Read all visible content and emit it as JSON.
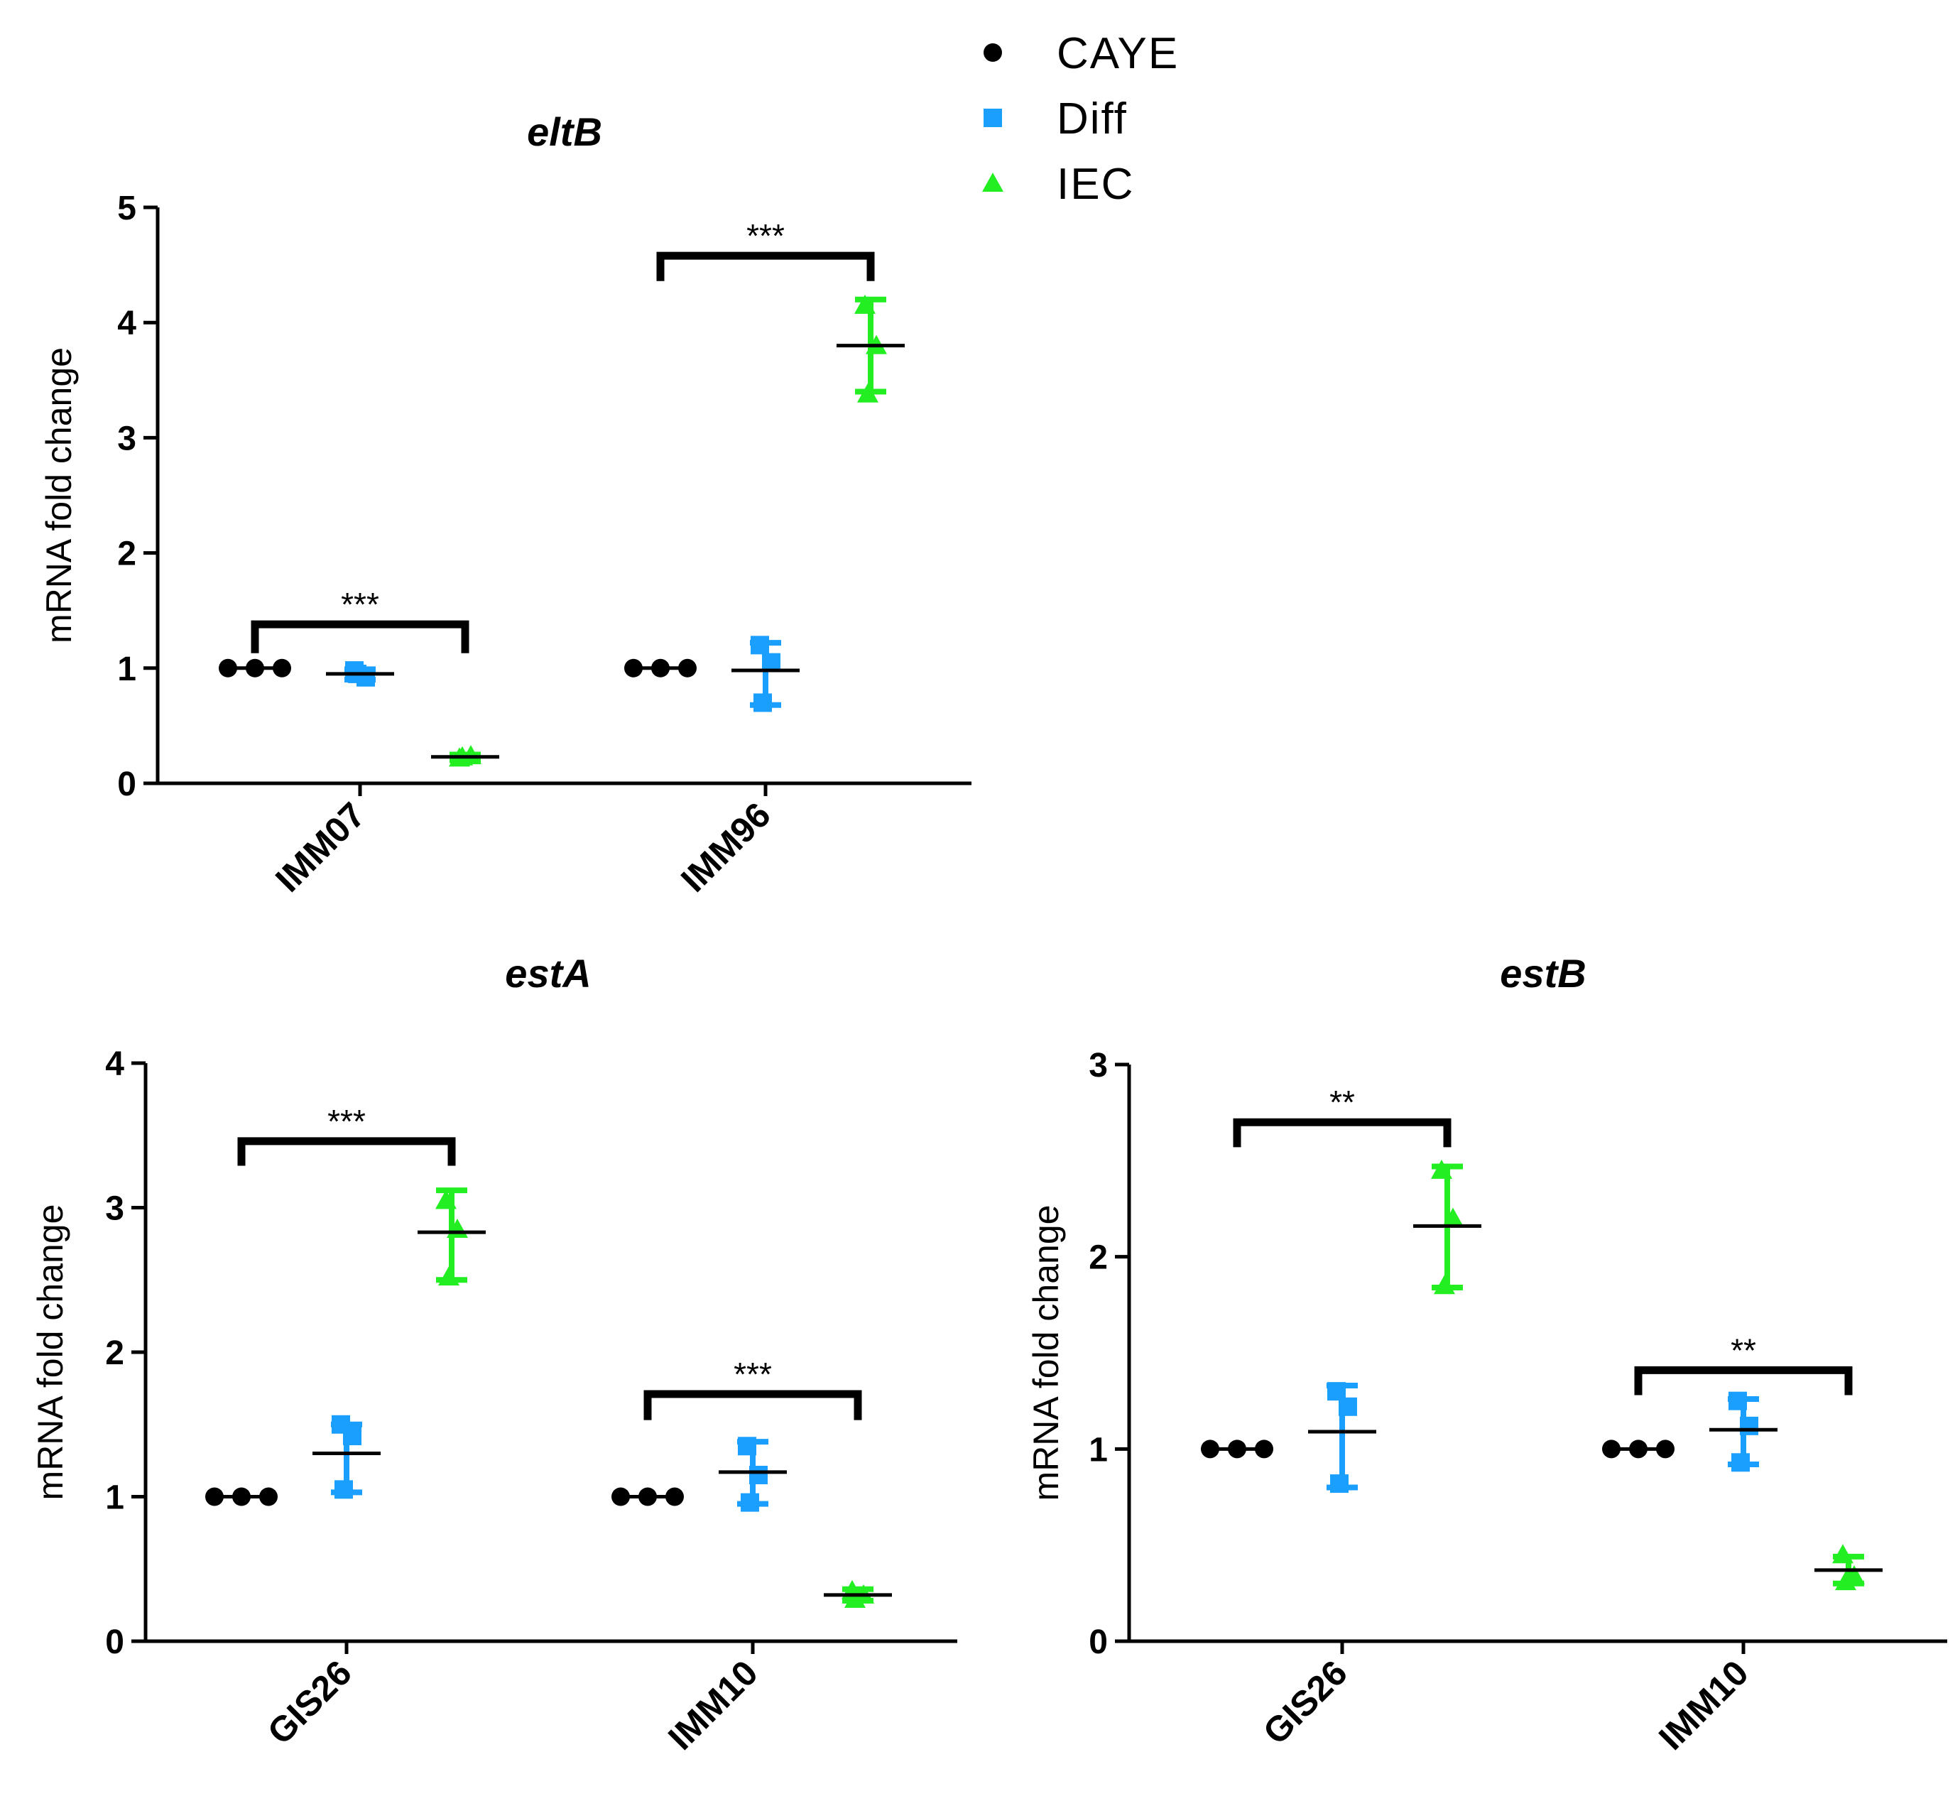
{
  "colors": {
    "CAYE": "#000000",
    "Diff": "#1a9fff",
    "IEC": "#22ee22",
    "axis": "#000000"
  },
  "legend": [
    {
      "name": "CAYE",
      "marker": "circle"
    },
    {
      "name": "Diff",
      "marker": "square"
    },
    {
      "name": "IEC",
      "marker": "triangle"
    }
  ],
  "chart_data": [
    {
      "type": "scatter",
      "title": "eltB",
      "ylabel": "mRNA fold change",
      "ylim": [
        0,
        5
      ],
      "yticks": [
        0,
        1,
        2,
        3,
        4,
        5
      ],
      "categories": [
        "IMM07",
        "IMM96"
      ],
      "series": [
        {
          "name": "CAYE",
          "groups": [
            {
              "points": [
                1.0,
                1.0,
                1.0
              ],
              "mean": 1.0,
              "err": [
                1.0,
                1.0
              ]
            },
            {
              "points": [
                1.0,
                1.0,
                1.0
              ],
              "mean": 1.0,
              "err": [
                1.0,
                1.0
              ]
            }
          ]
        },
        {
          "name": "Diff",
          "groups": [
            {
              "points": [
                0.98,
                0.92,
                0.95
              ],
              "mean": 0.95,
              "err": [
                0.9,
                0.99
              ]
            },
            {
              "points": [
                1.2,
                1.05,
                0.7
              ],
              "mean": 0.98,
              "err": [
                0.68,
                1.22
              ]
            }
          ]
        },
        {
          "name": "IEC",
          "groups": [
            {
              "points": [
                0.22,
                0.24,
                0.23
              ],
              "mean": 0.23,
              "err": [
                0.2,
                0.25
              ]
            },
            {
              "points": [
                4.15,
                3.8,
                3.38
              ],
              "mean": 3.8,
              "err": [
                3.4,
                4.2
              ]
            }
          ]
        }
      ],
      "significance": [
        {
          "group": 0,
          "from": "CAYE",
          "to": "IEC",
          "label": "***",
          "y": 1.38,
          "drop": 0.25
        },
        {
          "group": 1,
          "from": "CAYE",
          "to": "IEC",
          "label": "***",
          "y": 4.58,
          "drop": 0.22
        }
      ]
    },
    {
      "type": "scatter",
      "title": "estA",
      "ylabel": "mRNA fold change",
      "ylim": [
        0,
        4
      ],
      "yticks": [
        0,
        1,
        2,
        3,
        4
      ],
      "categories": [
        "GIS26",
        "IMM10"
      ],
      "series": [
        {
          "name": "CAYE",
          "groups": [
            {
              "points": [
                1.0,
                1.0,
                1.0
              ],
              "mean": 1.0,
              "err": [
                1.0,
                1.0
              ]
            },
            {
              "points": [
                1.0,
                1.0,
                1.0
              ],
              "mean": 1.0,
              "err": [
                1.0,
                1.0
              ]
            }
          ]
        },
        {
          "name": "Diff",
          "groups": [
            {
              "points": [
                1.5,
                1.42,
                1.05
              ],
              "mean": 1.3,
              "err": [
                1.03,
                1.5
              ]
            },
            {
              "points": [
                1.35,
                1.15,
                0.96
              ],
              "mean": 1.17,
              "err": [
                0.95,
                1.38
              ]
            }
          ]
        },
        {
          "name": "IEC",
          "groups": [
            {
              "points": [
                3.05,
                2.85,
                2.52
              ],
              "mean": 2.83,
              "err": [
                2.5,
                3.12
              ]
            },
            {
              "points": [
                0.35,
                0.32,
                0.29
              ],
              "mean": 0.32,
              "err": [
                0.28,
                0.36
              ]
            }
          ]
        }
      ],
      "significance": [
        {
          "group": 0,
          "from": "CAYE",
          "to": "IEC",
          "label": "***",
          "y": 3.46,
          "drop": 0.17
        },
        {
          "group": 1,
          "from": "CAYE",
          "to": "IEC",
          "label": "***",
          "y": 1.71,
          "drop": 0.18
        }
      ]
    },
    {
      "type": "scatter",
      "title": "estB",
      "ylabel": "mRNA fold change",
      "ylim": [
        0,
        3
      ],
      "yticks": [
        0,
        1,
        2,
        3
      ],
      "categories": [
        "GIS26",
        "IMM10"
      ],
      "series": [
        {
          "name": "CAYE",
          "groups": [
            {
              "points": [
                1.0,
                1.0,
                1.0
              ],
              "mean": 1.0,
              "err": [
                1.0,
                1.0
              ]
            },
            {
              "points": [
                1.0,
                1.0,
                1.0
              ],
              "mean": 1.0,
              "err": [
                1.0,
                1.0
              ]
            }
          ]
        },
        {
          "name": "Diff",
          "groups": [
            {
              "points": [
                1.3,
                1.22,
                0.82
              ],
              "mean": 1.09,
              "err": [
                0.8,
                1.33
              ]
            },
            {
              "points": [
                1.25,
                1.12,
                0.93
              ],
              "mean": 1.1,
              "err": [
                0.92,
                1.26
              ]
            }
          ]
        },
        {
          "name": "IEC",
          "groups": [
            {
              "points": [
                2.45,
                2.2,
                1.85
              ],
              "mean": 2.16,
              "err": [
                1.84,
                2.47
              ]
            },
            {
              "points": [
                0.45,
                0.34,
                0.31
              ],
              "mean": 0.37,
              "err": [
                0.3,
                0.44
              ]
            }
          ]
        }
      ],
      "significance": [
        {
          "group": 0,
          "from": "CAYE",
          "to": "IEC",
          "label": "**",
          "y": 2.7,
          "drop": 0.13
        },
        {
          "group": 1,
          "from": "CAYE",
          "to": "IEC",
          "label": "**",
          "y": 1.41,
          "drop": 0.13
        }
      ]
    }
  ]
}
